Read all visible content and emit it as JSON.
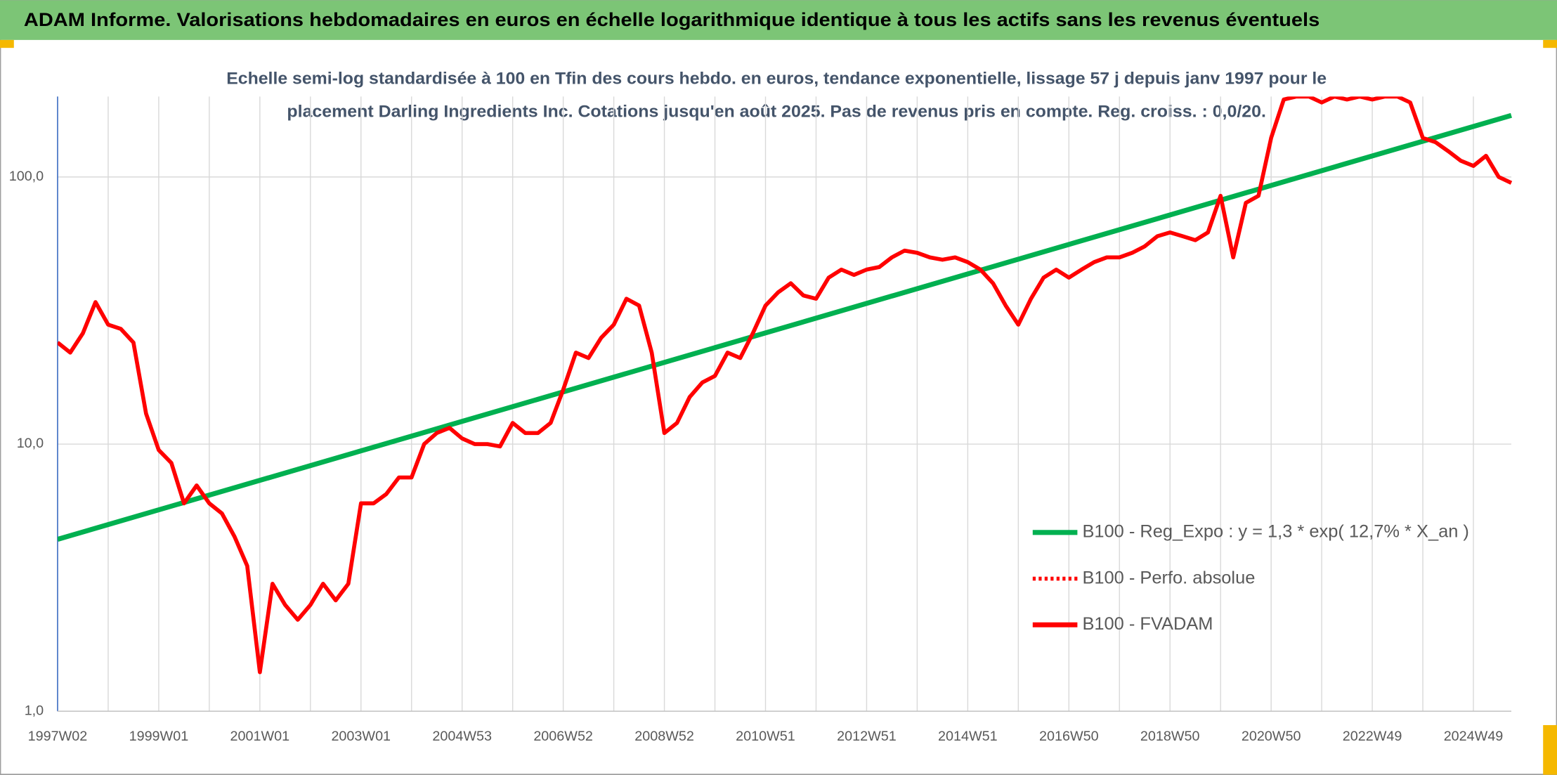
{
  "chart_data": {
    "type": "line",
    "title": "ADAM Informe. Valorisations hebdomadaires en euros en échelle logarithmique identique à tous les actifs sans les revenus éventuels",
    "subtitle": [
      "Echelle semi-log standardisée à 100 en Tfin des cours hebdo. en euros, tendance exponentielle, lissage 57 j depuis janv 1997 pour le",
      "placement Darling Ingredients Inc. Cotations jusqu'en août 2025. Pas de revenus pris en compte. Reg. croiss. : 0,0/20."
    ],
    "log_scale": true,
    "grid": true,
    "legend": "lower right",
    "ylim": [
      1,
      200
    ],
    "yticks": [
      {
        "value": 1,
        "label": "1,0"
      },
      {
        "value": 10,
        "label": "10,0"
      },
      {
        "value": 100,
        "label": "100,0"
      }
    ],
    "categories": [
      "1997W02",
      null,
      null,
      null,
      null,
      null,
      null,
      null,
      "1999W01",
      null,
      null,
      null,
      null,
      null,
      null,
      null,
      "2001W01",
      null,
      null,
      null,
      null,
      null,
      null,
      null,
      "2003W01",
      null,
      null,
      null,
      null,
      null,
      null,
      null,
      "2004W53",
      null,
      null,
      null,
      null,
      null,
      null,
      null,
      "2006W52",
      null,
      null,
      null,
      null,
      null,
      null,
      null,
      "2008W52",
      null,
      null,
      null,
      null,
      null,
      null,
      null,
      "2010W51",
      null,
      null,
      null,
      null,
      null,
      null,
      null,
      "2012W51",
      null,
      null,
      null,
      null,
      null,
      null,
      null,
      "2014W51",
      null,
      null,
      null,
      null,
      null,
      null,
      null,
      "2016W50",
      null,
      null,
      null,
      null,
      null,
      null,
      null,
      "2018W50",
      null,
      null,
      null,
      null,
      null,
      null,
      null,
      "2020W50",
      null,
      null,
      null,
      null,
      null,
      null,
      null,
      "2022W49",
      null,
      null,
      null,
      null,
      null,
      null,
      null,
      "2024W49",
      null,
      null,
      null
    ],
    "series": [
      {
        "name": "B100 - Reg_Expo : y = 1,3 * exp( 12,7% *  X_an )",
        "color": "#00b050",
        "x": [
          0,
          115
        ],
        "values": [
          4.4,
          170
        ]
      },
      {
        "name": "B100 - Perfo. absolue",
        "color": "#ff0000",
        "dotted": true
      },
      {
        "name": "B100 - FVADAM",
        "color": "#ff0000",
        "values": [
          24,
          22,
          26,
          34,
          28,
          27,
          24,
          13,
          9.5,
          8.5,
          6,
          7,
          6,
          5.5,
          4.5,
          3.5,
          1.4,
          3,
          2.5,
          2.2,
          2.5,
          3,
          2.6,
          3,
          6,
          6,
          6.5,
          7.5,
          7.5,
          10,
          11,
          11.5,
          10.5,
          10,
          10,
          9.8,
          12,
          11,
          11,
          12,
          16,
          22,
          21,
          25,
          28,
          35,
          33,
          22,
          11,
          12,
          15,
          17,
          18,
          22,
          21,
          26,
          33,
          37,
          40,
          36,
          35,
          42,
          45,
          43,
          45,
          46,
          50,
          53,
          52,
          50,
          49,
          50,
          48,
          45,
          40,
          33,
          28,
          35,
          42,
          45,
          42,
          45,
          48,
          50,
          50,
          52,
          55,
          60,
          62,
          60,
          58,
          62,
          85,
          50,
          80,
          85,
          140,
          195,
          200,
          200,
          190,
          200,
          195,
          200,
          195,
          200,
          200,
          190,
          140,
          135,
          125,
          115,
          110,
          120,
          100,
          95
        ]
      }
    ]
  }
}
